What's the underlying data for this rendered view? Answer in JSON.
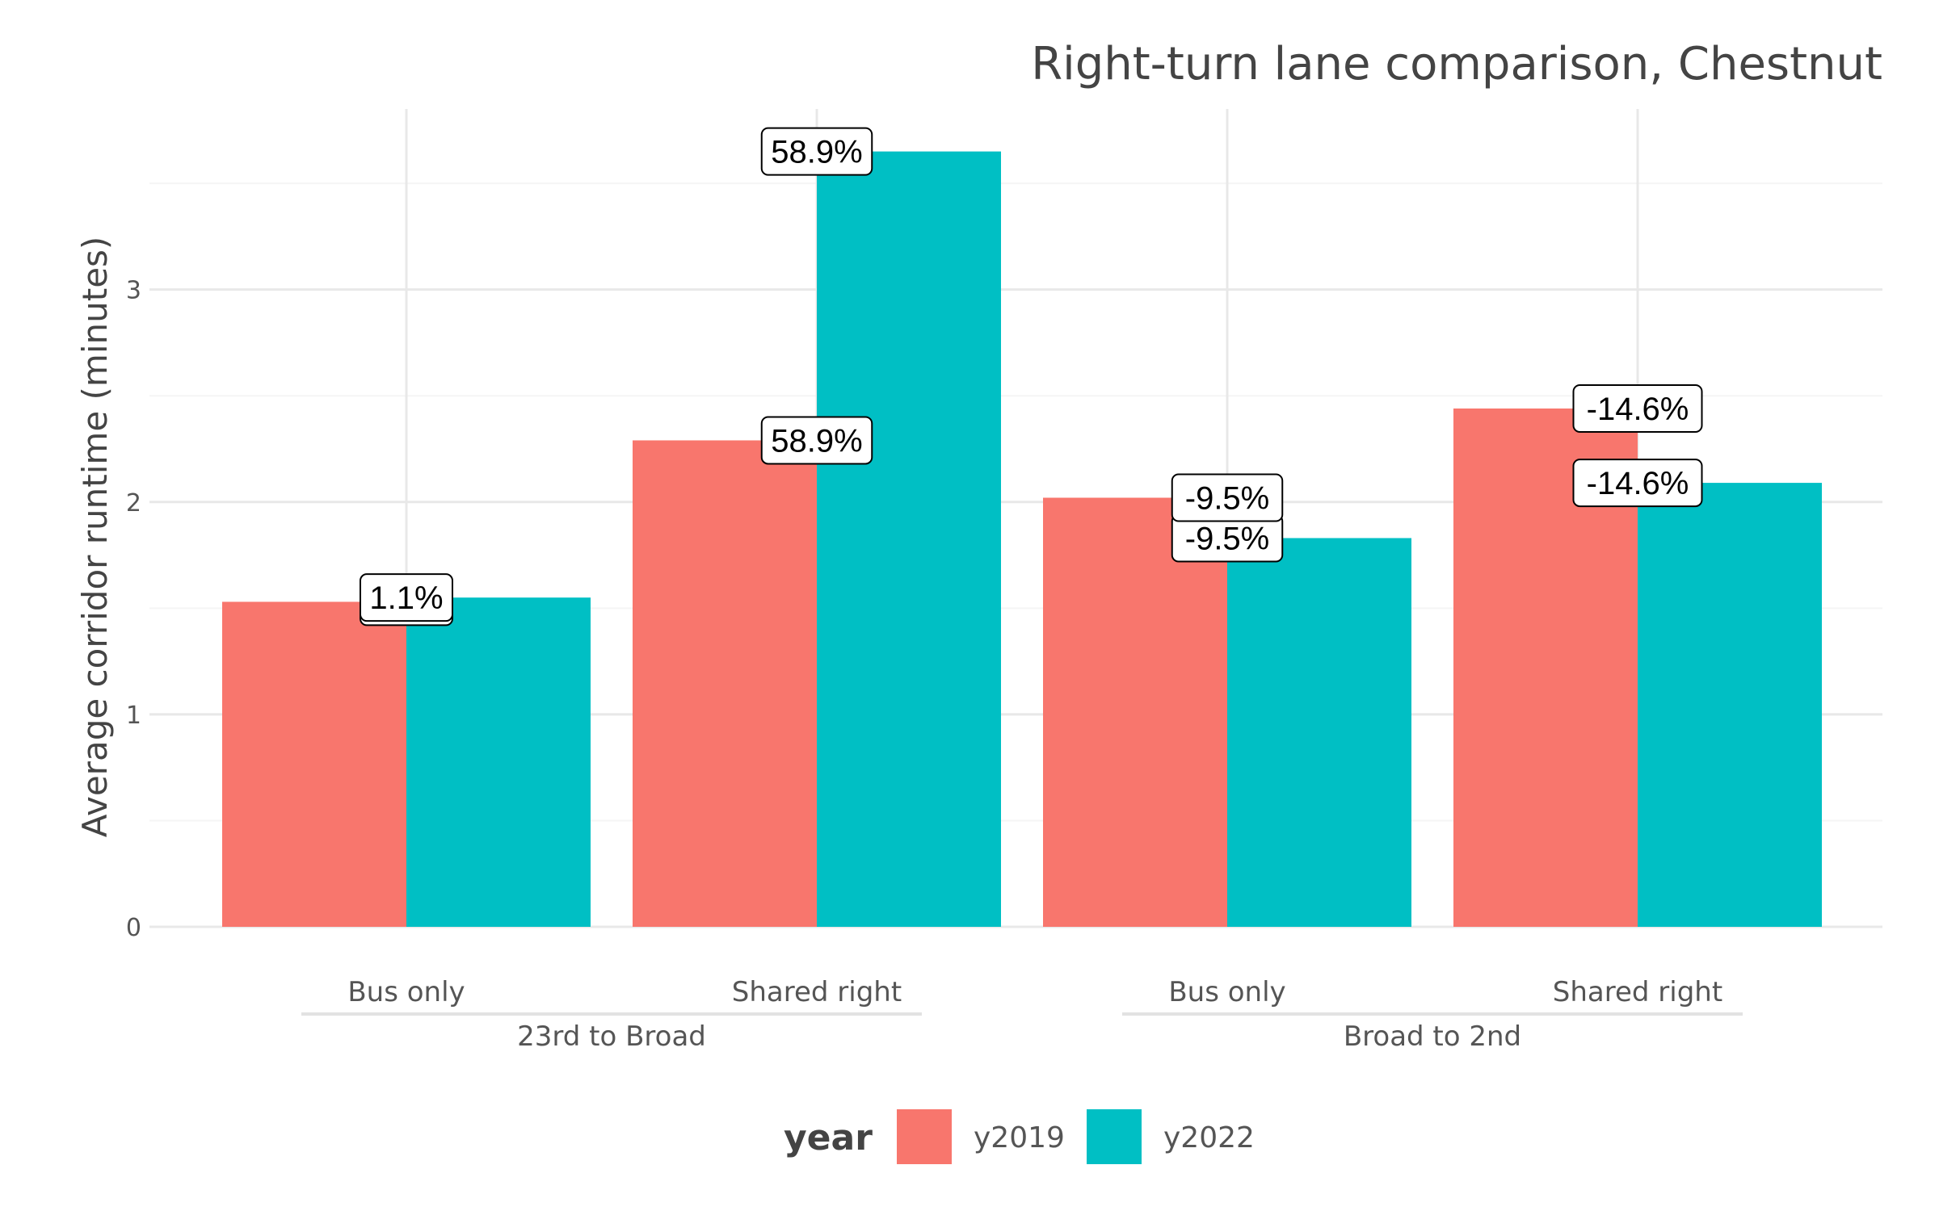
{
  "chart_data": {
    "type": "bar",
    "title": "Right-turn lane comparison, Chestnut",
    "ylabel": "Average corridor runtime (minutes)",
    "xlabel": "",
    "ylim": [
      0,
      3.85
    ],
    "yticks": [
      0,
      1,
      2,
      3
    ],
    "grid": true,
    "categories": [
      "Bus only",
      "Shared right",
      "Bus only",
      "Shared right"
    ],
    "groups": [
      {
        "label": "23rd to Broad",
        "categories": [
          0,
          1
        ]
      },
      {
        "label": "Broad to 2nd",
        "categories": [
          2,
          3
        ]
      }
    ],
    "series": [
      {
        "name": "y2019",
        "color": "#F8766D",
        "values": [
          1.53,
          2.29,
          2.02,
          2.44
        ]
      },
      {
        "name": "y2022",
        "color": "#00BFC4",
        "values": [
          1.55,
          3.65,
          1.83,
          2.09
        ]
      }
    ],
    "data_labels": [
      {
        "category": 0,
        "series": 0,
        "text": "1.1%"
      },
      {
        "category": 0,
        "series": 1,
        "text": "1.1%"
      },
      {
        "category": 1,
        "series": 0,
        "text": "58.9%"
      },
      {
        "category": 1,
        "series": 1,
        "text": "58.9%"
      },
      {
        "category": 2,
        "series": 0,
        "text": "-9.5%"
      },
      {
        "category": 2,
        "series": 1,
        "text": "-9.5%"
      },
      {
        "category": 3,
        "series": 0,
        "text": "-14.6%"
      },
      {
        "category": 3,
        "series": 1,
        "text": "-14.6%"
      }
    ],
    "legend": {
      "title": "year",
      "position": "bottom"
    }
  }
}
